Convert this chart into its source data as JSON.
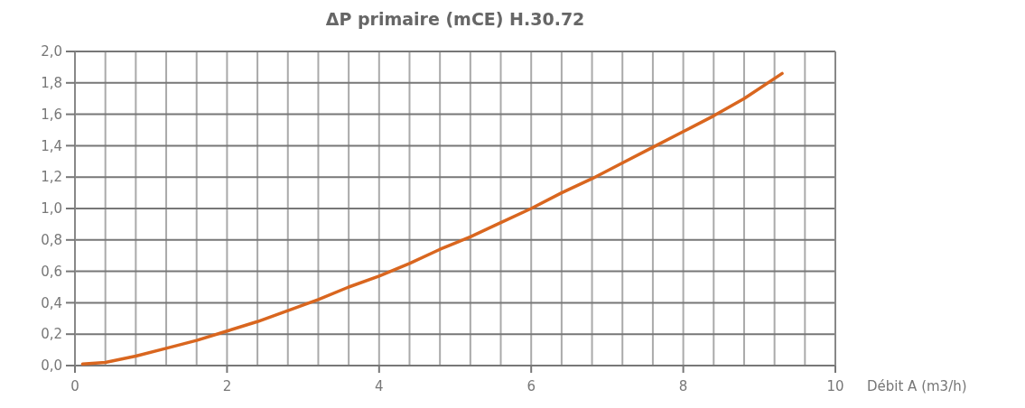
{
  "chart_data": {
    "type": "line",
    "title": "ΔP primaire (mCE) H.30.72",
    "xlabel": "Débit A (m3/h)",
    "x": [
      0.1,
      0.4,
      0.8,
      1.2,
      1.6,
      2,
      2.4,
      2.8,
      3.2,
      3.6,
      4,
      4.4,
      4.8,
      5.2,
      5.6,
      6,
      6.4,
      6.8,
      7.2,
      7.6,
      8,
      8.4,
      8.8,
      9.3
    ],
    "series": [
      {
        "color": "#d9661f",
        "values": [
          0.01,
          0.02,
          0.06,
          0.11,
          0.16,
          0.22,
          0.28,
          0.35,
          0.42,
          0.5,
          0.57,
          0.65,
          0.74,
          0.82,
          0.91,
          1.0,
          1.1,
          1.19,
          1.29,
          1.39,
          1.49,
          1.59,
          1.7,
          1.86
        ]
      }
    ],
    "xlim": [
      0,
      10
    ],
    "xticks": [
      0,
      {
        "value": 0.4,
        "label": null
      },
      {
        "value": 0.8,
        "label": null
      },
      {
        "value": 1.2,
        "label": null
      },
      {
        "value": 1.6,
        "label": null
      },
      2,
      {
        "value": 2.4,
        "label": null
      },
      {
        "value": 2.8,
        "label": null
      },
      {
        "value": 3.2,
        "label": null
      },
      {
        "value": 3.6,
        "label": null
      },
      4,
      {
        "value": 4.4,
        "label": null
      },
      {
        "value": 4.8,
        "label": null
      },
      {
        "value": 5.2,
        "label": null
      },
      {
        "value": 5.6,
        "label": null
      },
      6,
      {
        "value": 6.4,
        "label": null
      },
      {
        "value": 6.8,
        "label": null
      },
      {
        "value": 7.2,
        "label": null
      },
      {
        "value": 7.6,
        "label": null
      },
      8,
      {
        "value": 8.4,
        "label": null
      },
      {
        "value": 8.8,
        "label": null
      },
      {
        "value": 9.2,
        "label": null
      },
      {
        "value": 9.6,
        "label": null
      },
      10
    ],
    "ylim": [
      0,
      2
    ],
    "yticks": [
      {
        "value": 0,
        "label": "0,0"
      },
      {
        "value": 0.2,
        "label": "0,2"
      },
      {
        "value": 0.4,
        "label": "0,4"
      },
      {
        "value": 0.6,
        "label": "0,6"
      },
      {
        "value": 0.8,
        "label": "0,8"
      },
      {
        "value": 1,
        "label": "1,0"
      },
      {
        "value": 1.2,
        "label": "1,2"
      },
      {
        "value": 1.4,
        "label": "1,4"
      },
      {
        "value": 1.6,
        "label": "1,6"
      },
      {
        "value": 1.8,
        "label": "1,8"
      },
      {
        "value": 2,
        "label": "2,0"
      }
    ],
    "grid": true,
    "marker": "none",
    "line_style": "solid"
  }
}
